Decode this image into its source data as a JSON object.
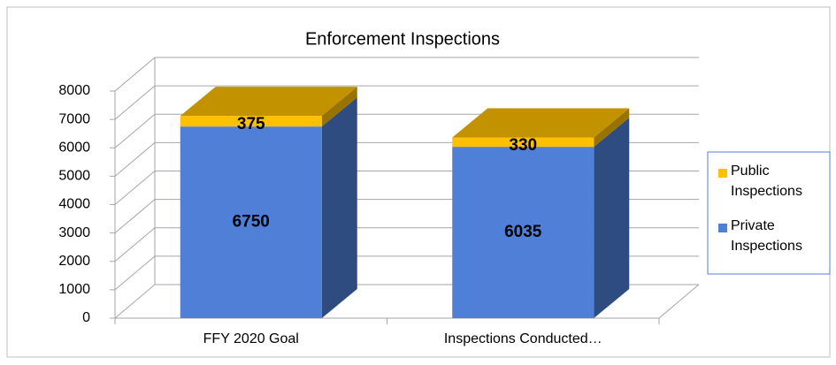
{
  "chart_data": {
    "type": "bar3d_stacked",
    "title": "Enforcement Inspections",
    "categories": [
      "FFY 2020 Goal",
      "Inspections Conducted…"
    ],
    "series": [
      {
        "name": "Private Inspections",
        "color": "#4f7fd6",
        "values": [
          6750,
          6035
        ]
      },
      {
        "name": "Public Inspections",
        "color": "#ffc000",
        "values": [
          375,
          330
        ]
      }
    ],
    "ylim": [
      0,
      8000
    ],
    "yticks": [
      0,
      1000,
      2000,
      3000,
      4000,
      5000,
      6000,
      7000,
      8000
    ],
    "grid": true,
    "legend": "right"
  }
}
